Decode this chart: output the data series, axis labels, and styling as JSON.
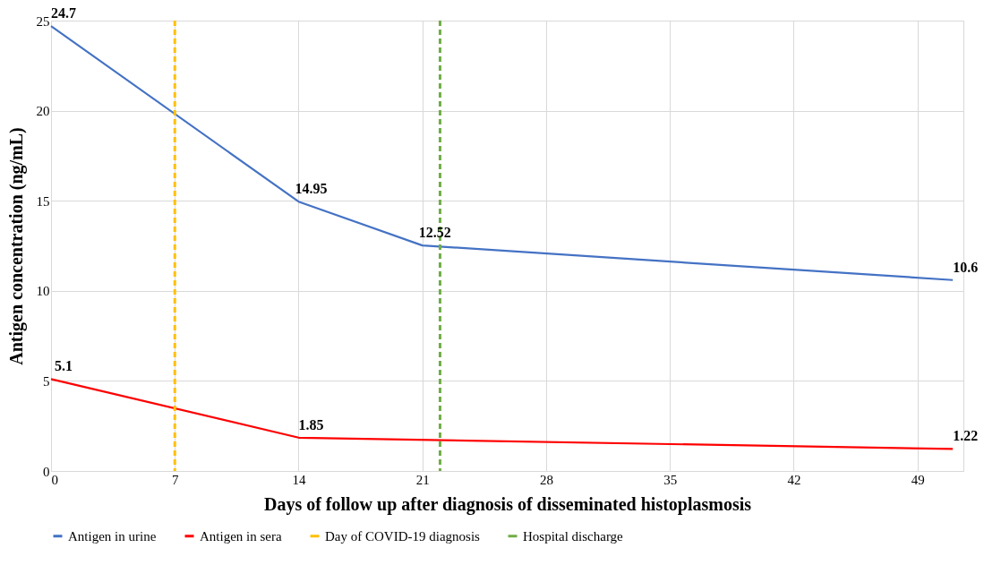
{
  "chart_data": {
    "type": "line",
    "xlabel": "Days of follow up after diagnosis of disseminated histoplasmosis",
    "ylabel": "Antigen concentration (ng/mL)",
    "xlim": [
      0,
      51.6
    ],
    "xticks": [
      0,
      7,
      14,
      21,
      28,
      35,
      42,
      49
    ],
    "ylim": [
      0,
      25
    ],
    "yticks": [
      0,
      5,
      10,
      15,
      20,
      25
    ],
    "grid": true,
    "legend": "bottom",
    "marker": "none",
    "line_style": "solid",
    "series": [
      {
        "name": "Antigen in urine",
        "color": "#4472c4",
        "x": [
          0,
          14,
          21,
          51
        ],
        "values": [
          24.7,
          14.95,
          12.52,
          10.6
        ],
        "value_labels": [
          "24.7",
          "14.95",
          "12.52",
          "10.6"
        ]
      },
      {
        "name": "Antigen in sera",
        "color": "#ff0000",
        "x": [
          0,
          14,
          51
        ],
        "values": [
          5.1,
          1.85,
          1.22
        ],
        "value_labels": [
          "5.1",
          "1.85",
          "1.22"
        ]
      }
    ],
    "ref_lines": [
      {
        "axis": "x",
        "value": 7,
        "label": "Day of COVID-19 diagnosis",
        "color": "#ffc000",
        "line_style": "dashed"
      },
      {
        "axis": "x",
        "value": 22,
        "label": "Hospital discharge",
        "color": "#70ad47",
        "line_style": "dashed"
      }
    ]
  }
}
